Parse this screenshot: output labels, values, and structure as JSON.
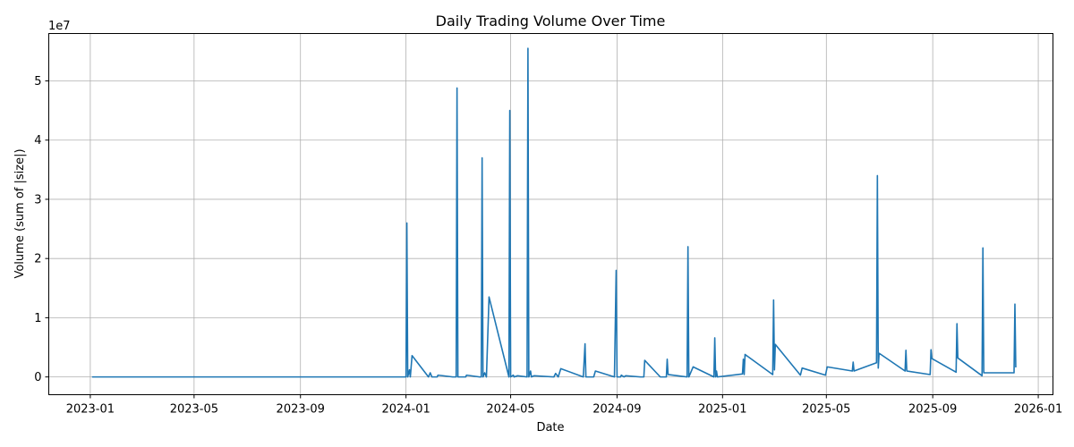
{
  "chart_data": {
    "type": "line",
    "title": "Daily Trading Volume Over Time",
    "xlabel": "Date",
    "ylabel": "Volume (sum of |size|)",
    "y_offset_text": "1e7",
    "y_scale_factor": 10000000,
    "xlim": [
      "2022-11-14",
      "2026-01-18"
    ],
    "ylim": [
      -3000000,
      58000000
    ],
    "x_ticks": [
      "2023-01-01",
      "2023-05-01",
      "2023-09-01",
      "2024-01-01",
      "2024-05-01",
      "2024-09-01",
      "2025-01-01",
      "2025-05-01",
      "2025-09-01",
      "2026-01-01"
    ],
    "x_tick_labels": [
      "2023-01",
      "2023-05",
      "2023-09",
      "2024-01",
      "2024-05",
      "2024-09",
      "2025-01",
      "2025-05",
      "2025-09",
      "2026-01"
    ],
    "y_ticks": [
      0,
      10000000,
      20000000,
      30000000,
      40000000,
      50000000
    ],
    "y_tick_labels": [
      "0",
      "1",
      "2",
      "3",
      "4",
      "5"
    ],
    "grid": true,
    "legend": "none",
    "series": [
      {
        "color": "#1f77b4",
        "points": [
          [
            "2023-01-03",
            0
          ],
          [
            "2024-01-01",
            0
          ],
          [
            "2024-01-02",
            26000000
          ],
          [
            "2024-01-03",
            0
          ],
          [
            "2024-01-05",
            1200000
          ],
          [
            "2024-01-06",
            0
          ],
          [
            "2024-01-08",
            3600000
          ],
          [
            "2024-01-27",
            0
          ],
          [
            "2024-01-29",
            700000
          ],
          [
            "2024-01-31",
            0
          ],
          [
            "2024-02-06",
            0
          ],
          [
            "2024-02-07",
            300000
          ],
          [
            "2024-02-24",
            0
          ],
          [
            "2024-02-28",
            0
          ],
          [
            "2024-02-29",
            48800000
          ],
          [
            "2024-03-01",
            0
          ],
          [
            "2024-03-10",
            0
          ],
          [
            "2024-03-11",
            300000
          ],
          [
            "2024-03-26",
            0
          ],
          [
            "2024-03-28",
            0
          ],
          [
            "2024-03-29",
            37000000
          ],
          [
            "2024-03-30",
            0
          ],
          [
            "2024-04-01",
            700000
          ],
          [
            "2024-04-03",
            0
          ],
          [
            "2024-04-06",
            13500000
          ],
          [
            "2024-04-29",
            0
          ],
          [
            "2024-04-30",
            45000000
          ],
          [
            "2024-05-01",
            0
          ],
          [
            "2024-05-04",
            300000
          ],
          [
            "2024-05-05",
            0
          ],
          [
            "2024-05-09",
            200000
          ],
          [
            "2024-05-20",
            0
          ],
          [
            "2024-05-21",
            55500000
          ],
          [
            "2024-05-22",
            0
          ],
          [
            "2024-05-24",
            1000000
          ],
          [
            "2024-05-25",
            0
          ],
          [
            "2024-05-28",
            200000
          ],
          [
            "2024-06-20",
            0
          ],
          [
            "2024-06-22",
            600000
          ],
          [
            "2024-06-25",
            0
          ],
          [
            "2024-06-28",
            1400000
          ],
          [
            "2024-07-24",
            0
          ],
          [
            "2024-07-26",
            5600000
          ],
          [
            "2024-07-27",
            0
          ],
          [
            "2024-08-05",
            0
          ],
          [
            "2024-08-07",
            1000000
          ],
          [
            "2024-08-29",
            0
          ],
          [
            "2024-08-31",
            18000000
          ],
          [
            "2024-09-01",
            0
          ],
          [
            "2024-09-05",
            0
          ],
          [
            "2024-09-06",
            300000
          ],
          [
            "2024-09-09",
            0
          ],
          [
            "2024-09-11",
            200000
          ],
          [
            "2024-09-28",
            0
          ],
          [
            "2024-10-02",
            0
          ],
          [
            "2024-10-03",
            2800000
          ],
          [
            "2024-10-21",
            0
          ],
          [
            "2024-10-28",
            0
          ],
          [
            "2024-10-29",
            3000000
          ],
          [
            "2024-10-30",
            400000
          ],
          [
            "2024-11-21",
            0
          ],
          [
            "2024-11-22",
            22000000
          ],
          [
            "2024-11-23",
            0
          ],
          [
            "2024-11-28",
            1700000
          ],
          [
            "2024-12-22",
            0
          ],
          [
            "2024-12-23",
            6600000
          ],
          [
            "2024-12-24",
            0
          ],
          [
            "2024-12-25",
            1000000
          ],
          [
            "2024-12-26",
            0
          ],
          [
            "2025-01-24",
            500000
          ],
          [
            "2025-01-25",
            3000000
          ],
          [
            "2025-01-26",
            400000
          ],
          [
            "2025-01-27",
            3800000
          ],
          [
            "2025-02-28",
            400000
          ],
          [
            "2025-03-01",
            13000000
          ],
          [
            "2025-03-02",
            1200000
          ],
          [
            "2025-03-03",
            5500000
          ],
          [
            "2025-04-01",
            300000
          ],
          [
            "2025-04-03",
            1500000
          ],
          [
            "2025-04-30",
            300000
          ],
          [
            "2025-05-02",
            1700000
          ],
          [
            "2025-05-31",
            1000000
          ],
          [
            "2025-06-01",
            2500000
          ],
          [
            "2025-06-02",
            1000000
          ],
          [
            "2025-06-28",
            2400000
          ],
          [
            "2025-06-29",
            34000000
          ],
          [
            "2025-06-30",
            1500000
          ],
          [
            "2025-07-01",
            4000000
          ],
          [
            "2025-07-31",
            1000000
          ],
          [
            "2025-08-01",
            4500000
          ],
          [
            "2025-08-02",
            1000000
          ],
          [
            "2025-08-29",
            400000
          ],
          [
            "2025-08-30",
            4600000
          ],
          [
            "2025-08-31",
            3100000
          ],
          [
            "2025-09-28",
            800000
          ],
          [
            "2025-09-29",
            9000000
          ],
          [
            "2025-09-30",
            3200000
          ],
          [
            "2025-10-28",
            200000
          ],
          [
            "2025-10-29",
            21800000
          ],
          [
            "2025-10-30",
            700000
          ],
          [
            "2025-12-04",
            700000
          ],
          [
            "2025-12-05",
            12300000
          ],
          [
            "2025-12-06",
            1600000
          ]
        ]
      }
    ]
  }
}
